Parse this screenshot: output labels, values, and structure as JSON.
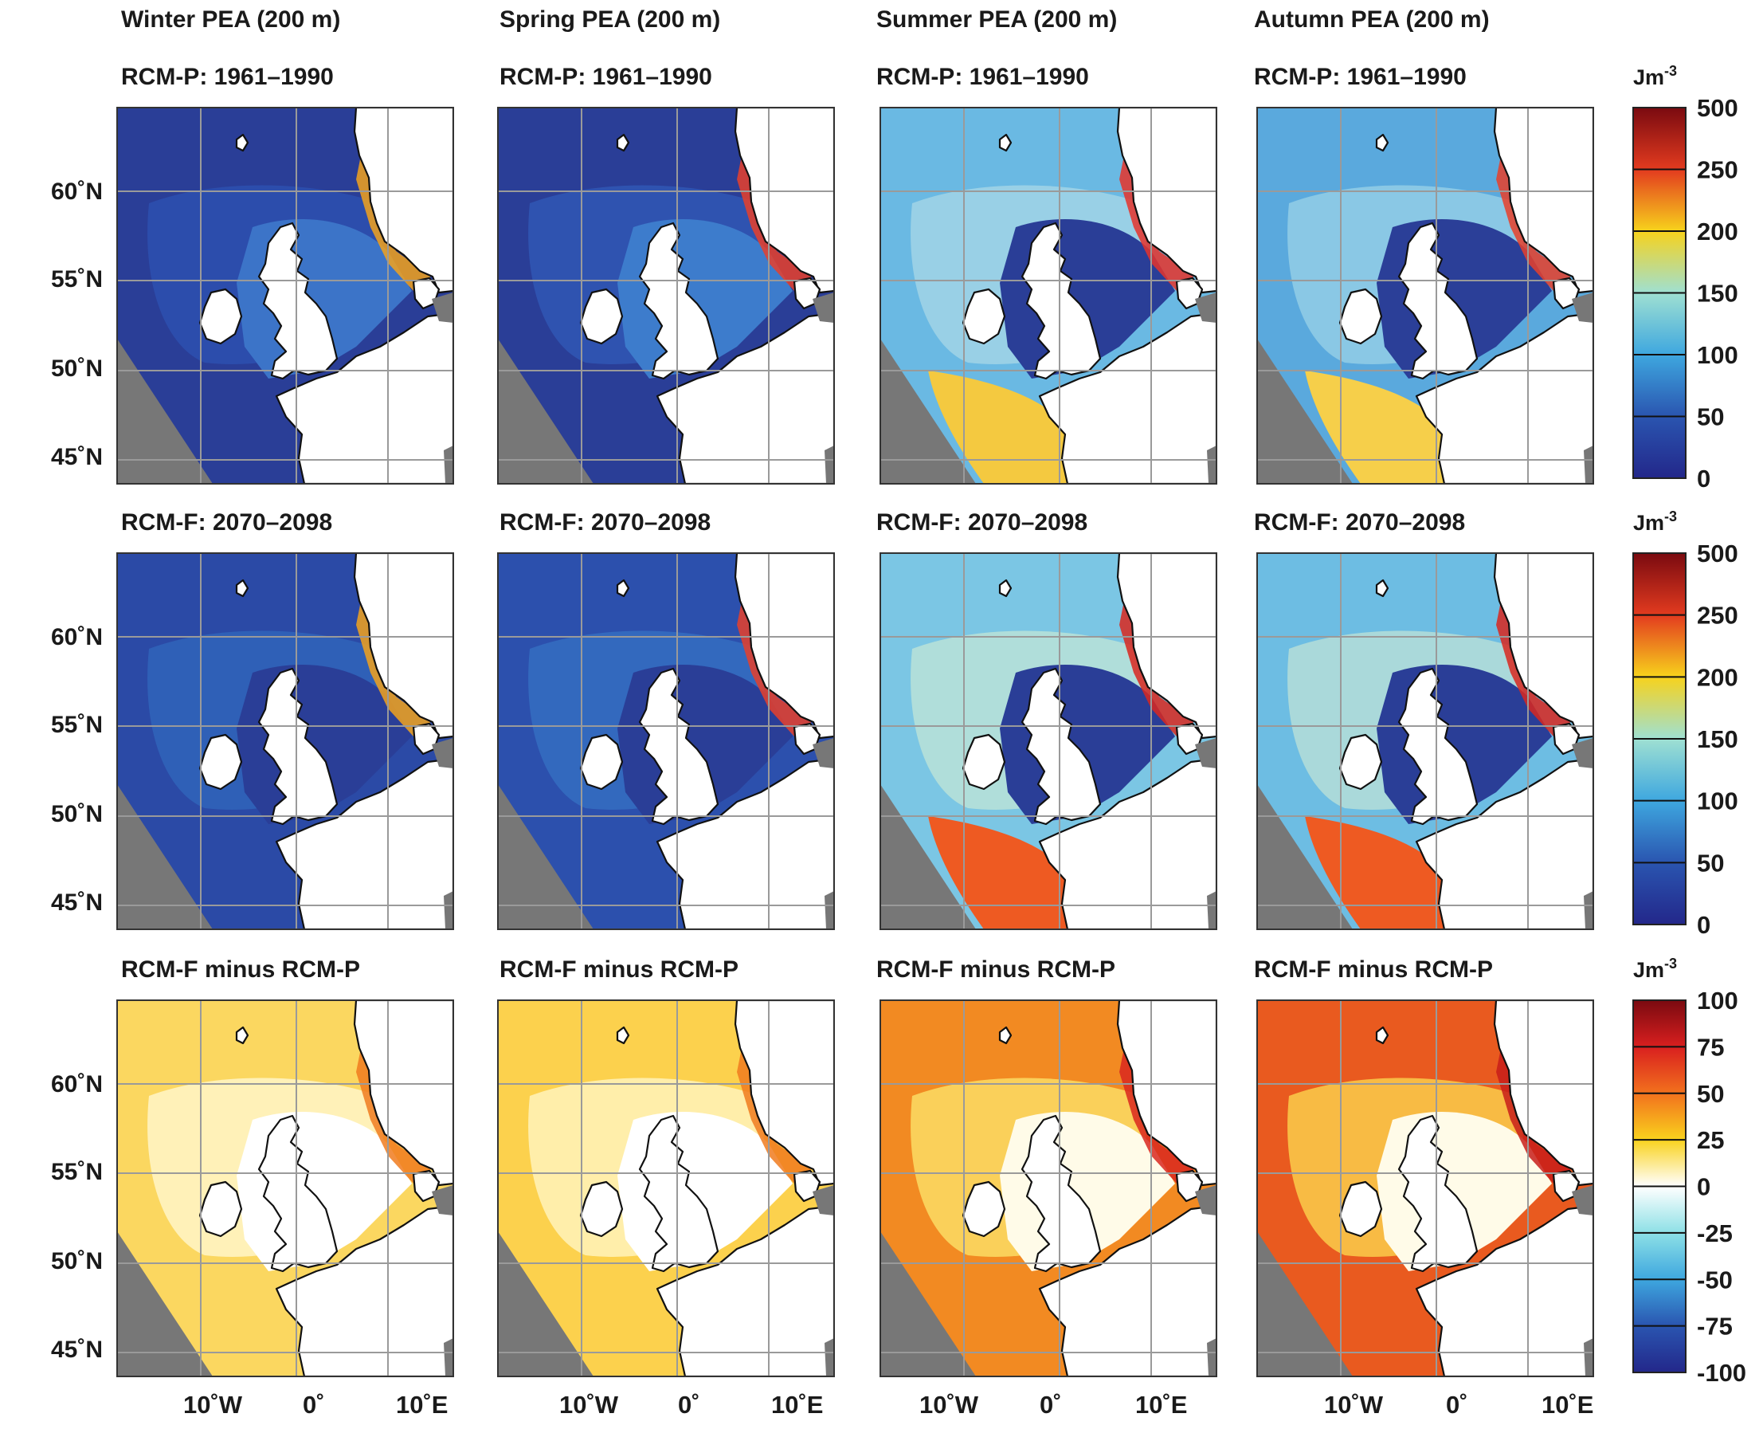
{
  "figure": {
    "column_titles": [
      "Winter PEA (200 m)",
      "Spring PEA (200 m)",
      "Summer PEA (200 m)",
      "Autumn PEA (200 m)"
    ],
    "rows": [
      {
        "label": "RCM-P: 1961–1990",
        "colorbar_unit": "Jm",
        "colorbar_unit_exp": "-3",
        "colorbar_ticks": [
          "500",
          "250",
          "200",
          "150",
          "100",
          "50",
          "0"
        ],
        "colorbar_colors": [
          "#7a0a10",
          "#e33b1f",
          "#f7d21c",
          "#9fe0d2",
          "#3ea7df",
          "#2a55b0",
          "#23278a"
        ]
      },
      {
        "label": "RCM-F: 2070–2098",
        "colorbar_unit": "Jm",
        "colorbar_unit_exp": "-3",
        "colorbar_ticks": [
          "500",
          "250",
          "200",
          "150",
          "100",
          "50",
          "0"
        ],
        "colorbar_colors": [
          "#7a0a10",
          "#e33b1f",
          "#f7d21c",
          "#9fe0d2",
          "#3ea7df",
          "#2a55b0",
          "#23278a"
        ]
      },
      {
        "label": "RCM-F minus RCM-P",
        "colorbar_unit": "Jm",
        "colorbar_unit_exp": "-3",
        "colorbar_ticks": [
          "100",
          "75",
          "50",
          "25",
          "0",
          "-25",
          "-50",
          "-75",
          "-100"
        ],
        "colorbar_colors": [
          "#7a0a10",
          "#d91f1f",
          "#f2711d",
          "#f9d21d",
          "#ffffff",
          "#8de0e6",
          "#3ea7df",
          "#2a55b0",
          "#23278a"
        ]
      }
    ],
    "lat_labels": [
      "60˚N",
      "55˚N",
      "50˚N",
      "45˚N"
    ],
    "lon_labels": [
      "10˚W",
      "0˚",
      "10˚E"
    ],
    "panel_fills": {
      "winter_p": {
        "deep": "#2a3e97",
        "mid": "#2c4fae",
        "shelf": "#3c74c8",
        "hot": "#f2a21c"
      },
      "spring_p": {
        "deep": "#2a3e97",
        "mid": "#3055b2",
        "shelf": "#3d7ccc",
        "hot": "#e8402a"
      },
      "summer_p": {
        "deep": "#6ab9e3",
        "mid": "#9ed3e6",
        "shelf": "#2a3e97",
        "hot": "#e5332a",
        "south": "#f4c940"
      },
      "autumn_p": {
        "deep": "#5aa9dd",
        "mid": "#8fcbe5",
        "shelf": "#2b3f98",
        "hot": "#e8402a",
        "south": "#f6cf4a"
      },
      "winter_f": {
        "deep": "#2b4aa6",
        "mid": "#3063b9",
        "shelf": "#2a3e97",
        "hot": "#f2a21c"
      },
      "spring_f": {
        "deep": "#2c50ad",
        "mid": "#346bc0",
        "shelf": "#2a3e97",
        "hot": "#e8402a"
      },
      "summer_f": {
        "deep": "#7bc6e4",
        "mid": "#b6e0d8",
        "shelf": "#2a3e97",
        "hot": "#d9271e",
        "south": "#ee5a22"
      },
      "autumn_f": {
        "deep": "#6dbde3",
        "mid": "#b0dcd8",
        "shelf": "#2a3e97",
        "hot": "#d9271e",
        "south": "#ee5a22"
      },
      "winter_d": {
        "deep": "#fbd760",
        "mid": "#fff4c2",
        "shelf": "#ffffff",
        "hot": "#f07b1f"
      },
      "spring_d": {
        "deep": "#fcd14d",
        "mid": "#fff1b5",
        "shelf": "#ffffff",
        "hot": "#f07b1f"
      },
      "summer_d": {
        "deep": "#f28a22",
        "mid": "#fbd760",
        "shelf": "#fffbe8",
        "hot": "#d9271e"
      },
      "autumn_d": {
        "deep": "#e95a1f",
        "mid": "#fac548",
        "shelf": "#fffbe8",
        "hot": "#c81d1a"
      }
    }
  }
}
